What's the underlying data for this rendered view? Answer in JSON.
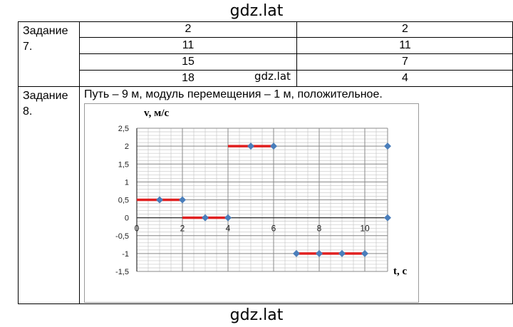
{
  "watermark": "gdz.lat",
  "task7": {
    "label": "Задание 7.",
    "rows": [
      [
        "2",
        "2"
      ],
      [
        "11",
        "11"
      ],
      [
        "15",
        "7"
      ],
      [
        "18",
        "4"
      ]
    ]
  },
  "task8": {
    "label": "Задание 8.",
    "answer": "Путь – 9 м, модуль перемещения – 1 м, положительное."
  },
  "chart_data": {
    "type": "line",
    "ylabel": "v, м/с",
    "xlabel": "t, с",
    "xlim": [
      0,
      11
    ],
    "ylim": [
      -1.5,
      2.5
    ],
    "x_ticks": [
      0,
      2,
      4,
      6,
      8,
      10
    ],
    "y_ticks": [
      2.5,
      2,
      1.5,
      1,
      0.5,
      0,
      -0.5,
      -1,
      -1.5
    ],
    "y_tick_labels": [
      "2,5",
      "2",
      "1,5",
      "1",
      "0,5",
      "0",
      "-0,5",
      "-1",
      "-1,5"
    ],
    "grid": true,
    "line_color": "#e02020",
    "point_color": "#4a7ebb",
    "segments": [
      {
        "x": [
          0,
          2
        ],
        "y": 0.5
      },
      {
        "x": [
          2,
          4
        ],
        "y": 0
      },
      {
        "x": [
          4,
          6
        ],
        "y": 2
      },
      {
        "x": [
          7,
          10
        ],
        "y": -1
      }
    ],
    "points": [
      {
        "x": 1,
        "y": 0.5
      },
      {
        "x": 2,
        "y": 0.5
      },
      {
        "x": 3,
        "y": 0
      },
      {
        "x": 4,
        "y": 0
      },
      {
        "x": 5,
        "y": 2
      },
      {
        "x": 6,
        "y": 2
      },
      {
        "x": 7,
        "y": -1
      },
      {
        "x": 8,
        "y": -1
      },
      {
        "x": 9,
        "y": -1
      },
      {
        "x": 10,
        "y": -1
      },
      {
        "x": 11,
        "y": 2
      },
      {
        "x": 11,
        "y": 0
      }
    ]
  }
}
